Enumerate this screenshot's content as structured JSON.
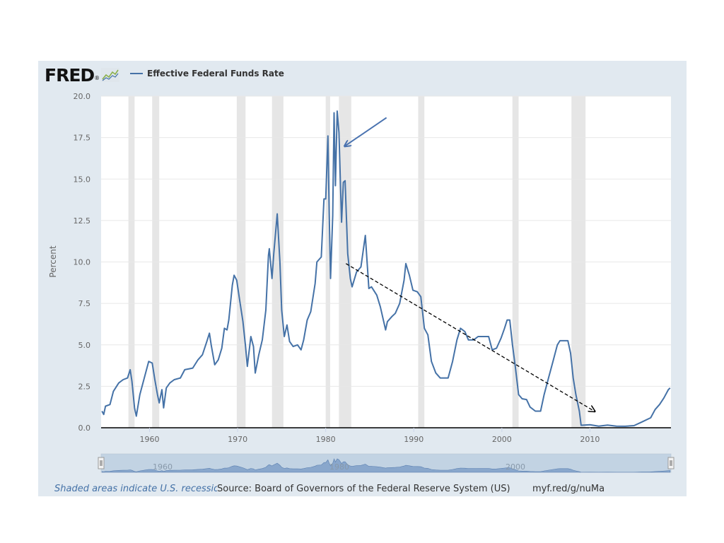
{
  "logo": {
    "text": "FRED",
    "trademark": "®"
  },
  "legend": {
    "label": "Effective Federal Funds Rate",
    "color": "#4572a7"
  },
  "footer": {
    "note": "Shaded areas indicate U.S. recessions",
    "source": "Source: Board of Governors of the Federal Reserve System (US)",
    "link": "myf.red/g/nuMa"
  },
  "navigator": {
    "labels": [
      "1960",
      "1980",
      "2000"
    ]
  },
  "colors": {
    "line": "#4572a7",
    "recession": "#e6e6e6",
    "panel": "#e1e9f0",
    "arrow": "#4a73b0",
    "trend": "#000000"
  },
  "chart_data": {
    "type": "line",
    "ylabel": "Percent",
    "xlabel": "",
    "ylim": [
      0,
      20
    ],
    "xlim": [
      1954.5,
      2019.2
    ],
    "yticks": [
      "0.0",
      "2.5",
      "5.0",
      "7.5",
      "10.0",
      "12.5",
      "15.0",
      "17.5",
      "20.0"
    ],
    "xticks": [
      "1960",
      "1970",
      "1980",
      "1990",
      "2000",
      "2010"
    ],
    "grid": true,
    "legend_position": "top-left",
    "recessions": [
      [
        1957.6,
        1958.3
      ],
      [
        1960.3,
        1961.1
      ],
      [
        1969.9,
        1970.9
      ],
      [
        1973.9,
        1975.2
      ],
      [
        1980.0,
        1980.5
      ],
      [
        1981.5,
        1982.9
      ],
      [
        1990.5,
        1991.2
      ],
      [
        2001.2,
        2001.9
      ],
      [
        2007.9,
        2009.5
      ]
    ],
    "series": [
      {
        "name": "Effective Federal Funds Rate",
        "points": [
          [
            1954.6,
            1.0
          ],
          [
            1954.8,
            0.8
          ],
          [
            1955.0,
            1.3
          ],
          [
            1955.5,
            1.4
          ],
          [
            1955.9,
            2.2
          ],
          [
            1956.5,
            2.7
          ],
          [
            1957.0,
            2.9
          ],
          [
            1957.5,
            3.0
          ],
          [
            1957.8,
            3.5
          ],
          [
            1958.0,
            2.8
          ],
          [
            1958.3,
            1.2
          ],
          [
            1958.5,
            0.7
          ],
          [
            1958.9,
            2.0
          ],
          [
            1959.5,
            3.2
          ],
          [
            1959.9,
            4.0
          ],
          [
            1960.3,
            3.9
          ],
          [
            1960.6,
            2.9
          ],
          [
            1960.9,
            2.0
          ],
          [
            1961.1,
            1.5
          ],
          [
            1961.4,
            2.3
          ],
          [
            1961.6,
            1.2
          ],
          [
            1961.9,
            2.4
          ],
          [
            1962.3,
            2.7
          ],
          [
            1962.8,
            2.9
          ],
          [
            1963.5,
            3.0
          ],
          [
            1964.0,
            3.5
          ],
          [
            1964.9,
            3.6
          ],
          [
            1965.5,
            4.1
          ],
          [
            1966.0,
            4.4
          ],
          [
            1966.5,
            5.2
          ],
          [
            1966.8,
            5.7
          ],
          [
            1967.0,
            5.0
          ],
          [
            1967.4,
            3.8
          ],
          [
            1967.8,
            4.1
          ],
          [
            1968.2,
            4.8
          ],
          [
            1968.5,
            6.0
          ],
          [
            1968.8,
            5.9
          ],
          [
            1969.0,
            6.5
          ],
          [
            1969.4,
            8.6
          ],
          [
            1969.6,
            9.2
          ],
          [
            1969.9,
            8.9
          ],
          [
            1970.2,
            7.8
          ],
          [
            1970.6,
            6.4
          ],
          [
            1970.9,
            4.9
          ],
          [
            1971.1,
            3.7
          ],
          [
            1971.5,
            5.5
          ],
          [
            1971.8,
            4.9
          ],
          [
            1972.0,
            3.3
          ],
          [
            1972.4,
            4.4
          ],
          [
            1972.8,
            5.3
          ],
          [
            1973.2,
            7.1
          ],
          [
            1973.5,
            10.4
          ],
          [
            1973.6,
            10.8
          ],
          [
            1973.9,
            9.0
          ],
          [
            1974.1,
            10.5
          ],
          [
            1974.5,
            12.9
          ],
          [
            1974.8,
            10.0
          ],
          [
            1975.0,
            7.1
          ],
          [
            1975.3,
            5.5
          ],
          [
            1975.6,
            6.2
          ],
          [
            1975.9,
            5.2
          ],
          [
            1976.3,
            4.9
          ],
          [
            1976.8,
            5.0
          ],
          [
            1977.2,
            4.7
          ],
          [
            1977.5,
            5.3
          ],
          [
            1977.9,
            6.5
          ],
          [
            1978.3,
            7.0
          ],
          [
            1978.8,
            8.7
          ],
          [
            1979.0,
            10.0
          ],
          [
            1979.5,
            10.3
          ],
          [
            1979.8,
            13.8
          ],
          [
            1980.0,
            13.8
          ],
          [
            1980.25,
            17.6
          ],
          [
            1980.4,
            13.0
          ],
          [
            1980.55,
            9.0
          ],
          [
            1980.8,
            12.8
          ],
          [
            1980.95,
            19.0
          ],
          [
            1981.1,
            14.6
          ],
          [
            1981.3,
            19.1
          ],
          [
            1981.5,
            17.8
          ],
          [
            1981.8,
            12.4
          ],
          [
            1982.0,
            14.8
          ],
          [
            1982.2,
            14.9
          ],
          [
            1982.5,
            10.5
          ],
          [
            1982.8,
            9.0
          ],
          [
            1983.0,
            8.5
          ],
          [
            1983.5,
            9.4
          ],
          [
            1984.0,
            9.7
          ],
          [
            1984.5,
            11.6
          ],
          [
            1984.9,
            8.4
          ],
          [
            1985.2,
            8.5
          ],
          [
            1985.8,
            8.0
          ],
          [
            1986.2,
            7.3
          ],
          [
            1986.8,
            5.9
          ],
          [
            1987.0,
            6.4
          ],
          [
            1987.5,
            6.7
          ],
          [
            1987.9,
            6.9
          ],
          [
            1988.4,
            7.5
          ],
          [
            1988.9,
            8.9
          ],
          [
            1989.1,
            9.9
          ],
          [
            1989.5,
            9.2
          ],
          [
            1989.9,
            8.3
          ],
          [
            1990.4,
            8.2
          ],
          [
            1990.8,
            7.9
          ],
          [
            1991.2,
            6.0
          ],
          [
            1991.6,
            5.6
          ],
          [
            1992.0,
            4.0
          ],
          [
            1992.5,
            3.3
          ],
          [
            1993.0,
            3.0
          ],
          [
            1993.5,
            3.0
          ],
          [
            1993.9,
            3.0
          ],
          [
            1994.4,
            4.0
          ],
          [
            1994.9,
            5.3
          ],
          [
            1995.3,
            6.0
          ],
          [
            1995.8,
            5.8
          ],
          [
            1996.2,
            5.3
          ],
          [
            1996.8,
            5.3
          ],
          [
            1997.3,
            5.5
          ],
          [
            1997.9,
            5.5
          ],
          [
            1998.5,
            5.5
          ],
          [
            1998.9,
            4.7
          ],
          [
            1999.4,
            4.8
          ],
          [
            1999.9,
            5.4
          ],
          [
            2000.3,
            6.0
          ],
          [
            2000.6,
            6.5
          ],
          [
            2000.9,
            6.5
          ],
          [
            2001.2,
            5.0
          ],
          [
            2001.5,
            3.8
          ],
          [
            2001.9,
            2.0
          ],
          [
            2002.3,
            1.75
          ],
          [
            2002.8,
            1.7
          ],
          [
            2003.2,
            1.25
          ],
          [
            2003.8,
            1.0
          ],
          [
            2004.4,
            1.0
          ],
          [
            2004.8,
            2.0
          ],
          [
            2005.3,
            3.0
          ],
          [
            2005.8,
            4.0
          ],
          [
            2006.3,
            5.0
          ],
          [
            2006.6,
            5.25
          ],
          [
            2007.5,
            5.25
          ],
          [
            2007.8,
            4.5
          ],
          [
            2008.1,
            3.0
          ],
          [
            2008.4,
            2.0
          ],
          [
            2008.8,
            1.0
          ],
          [
            2009.0,
            0.15
          ],
          [
            2010.0,
            0.18
          ],
          [
            2011.0,
            0.1
          ],
          [
            2012.0,
            0.16
          ],
          [
            2013.0,
            0.1
          ],
          [
            2014.0,
            0.09
          ],
          [
            2015.0,
            0.13
          ],
          [
            2015.9,
            0.35
          ],
          [
            2016.9,
            0.6
          ],
          [
            2017.4,
            1.1
          ],
          [
            2017.9,
            1.4
          ],
          [
            2018.4,
            1.8
          ],
          [
            2018.9,
            2.3
          ],
          [
            2019.1,
            2.4
          ]
        ]
      }
    ],
    "annotations": [
      {
        "kind": "arrow",
        "from": [
          1986.9,
          18.7
        ],
        "to": [
          1982.2,
          17.0
        ]
      },
      {
        "kind": "dashed-arrow",
        "from": [
          1982.3,
          9.9
        ],
        "to": [
          2010.5,
          1.0
        ]
      }
    ]
  }
}
